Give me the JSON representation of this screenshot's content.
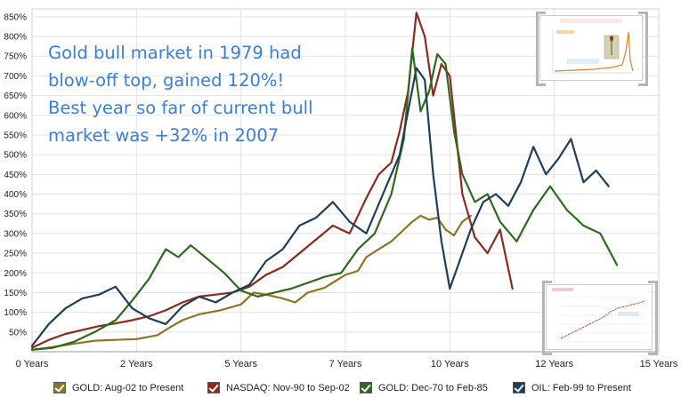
{
  "chart_data": {
    "type": "line",
    "title": "",
    "xlabel": "",
    "ylabel": "",
    "xlim": [
      0,
      15
    ],
    "ylim": [
      0,
      870
    ],
    "y_ticks": [
      50,
      100,
      150,
      200,
      250,
      300,
      350,
      400,
      450,
      500,
      550,
      600,
      650,
      700,
      750,
      800,
      850
    ],
    "y_tick_labels": [
      "50%",
      "100%",
      "150%",
      "200%",
      "250%",
      "300%",
      "350%",
      "400%",
      "450%",
      "500%",
      "550%",
      "600%",
      "650%",
      "700%",
      "750%",
      "800%",
      "850%"
    ],
    "x_ticks": [
      0,
      2.5,
      5,
      7.5,
      10,
      12.5,
      15
    ],
    "x_tick_labels": [
      "0 Years",
      "2 Years",
      "5 Years",
      "7 Years",
      "10 Years",
      "12 Years",
      "15 Years"
    ],
    "grid": true,
    "legend_position": "bottom",
    "annotation": [
      "Gold bull market in 1979 had",
      "blow-off top, gained 120%!",
      "Best year so far of current bull",
      "market was +32% in 2007"
    ],
    "series": [
      {
        "name": "GOLD: Aug-02 to Present",
        "color": "#8c7622",
        "x": [
          0,
          0.5,
          1.0,
          1.5,
          2.0,
          2.5,
          3.0,
          3.3,
          3.6,
          4.0,
          4.5,
          5.0,
          5.3,
          5.6,
          6.0,
          6.3,
          6.6,
          7.0,
          7.5,
          7.8,
          8.0,
          8.3,
          8.6,
          8.9,
          9.1,
          9.3,
          9.5,
          9.7,
          9.9,
          10.1,
          10.3,
          10.5
        ],
        "y": [
          5,
          12,
          20,
          28,
          30,
          32,
          42,
          62,
          80,
          95,
          105,
          120,
          150,
          145,
          135,
          125,
          150,
          162,
          195,
          205,
          240,
          260,
          280,
          310,
          330,
          345,
          335,
          340,
          310,
          295,
          330,
          345
        ]
      },
      {
        "name": "NASDAQ: Nov-90 to Sep-02",
        "color": "#8b2a1e",
        "x": [
          0,
          0.4,
          0.8,
          1.2,
          1.6,
          2.0,
          2.4,
          2.8,
          3.2,
          3.6,
          4.0,
          4.4,
          4.8,
          5.2,
          5.6,
          6.0,
          6.4,
          6.8,
          7.2,
          7.6,
          8.0,
          8.3,
          8.6,
          8.8,
          9.0,
          9.2,
          9.4,
          9.6,
          9.8,
          10.0,
          10.3,
          10.6,
          10.9,
          11.2,
          11.5
        ],
        "y": [
          10,
          30,
          45,
          55,
          65,
          72,
          80,
          90,
          105,
          125,
          140,
          145,
          150,
          165,
          195,
          215,
          250,
          285,
          320,
          300,
          390,
          450,
          480,
          560,
          660,
          860,
          800,
          650,
          730,
          700,
          400,
          290,
          250,
          310,
          160
        ]
      },
      {
        "name": "GOLD: Dec-70 to Feb-85",
        "color": "#2e6a1e",
        "x": [
          0,
          0.5,
          1.0,
          1.5,
          2.0,
          2.4,
          2.8,
          3.2,
          3.5,
          3.8,
          4.2,
          4.6,
          5.0,
          5.4,
          5.8,
          6.2,
          6.6,
          7.0,
          7.4,
          7.8,
          8.2,
          8.6,
          8.9,
          9.1,
          9.3,
          9.5,
          9.7,
          9.9,
          10.1,
          10.3,
          10.6,
          10.9,
          11.2,
          11.6,
          12.0,
          12.4,
          12.8,
          13.2,
          13.6,
          14.0
        ],
        "y": [
          5,
          10,
          25,
          50,
          80,
          130,
          185,
          260,
          240,
          270,
          235,
          200,
          155,
          140,
          150,
          160,
          175,
          190,
          200,
          260,
          300,
          400,
          540,
          770,
          610,
          660,
          755,
          730,
          560,
          450,
          380,
          400,
          330,
          280,
          360,
          420,
          360,
          320,
          300,
          220
        ]
      },
      {
        "name": "OIL: Feb-99 to Present",
        "color": "#1e3f5a",
        "x": [
          0,
          0.4,
          0.8,
          1.2,
          1.6,
          2.0,
          2.4,
          2.8,
          3.2,
          3.6,
          4.0,
          4.4,
          4.8,
          5.2,
          5.6,
          6.0,
          6.4,
          6.8,
          7.2,
          7.6,
          8.0,
          8.4,
          8.8,
          9.2,
          9.4,
          9.6,
          9.8,
          10.0,
          10.2,
          10.5,
          10.8,
          11.1,
          11.4,
          11.7,
          12.0,
          12.3,
          12.6,
          12.9,
          13.2,
          13.5,
          13.8
        ],
        "y": [
          15,
          70,
          110,
          135,
          145,
          165,
          110,
          85,
          70,
          115,
          140,
          125,
          150,
          170,
          230,
          260,
          320,
          340,
          380,
          330,
          300,
          400,
          500,
          720,
          690,
          450,
          280,
          160,
          220,
          310,
          380,
          400,
          370,
          430,
          520,
          450,
          490,
          540,
          430,
          460,
          420
        ]
      }
    ]
  }
}
